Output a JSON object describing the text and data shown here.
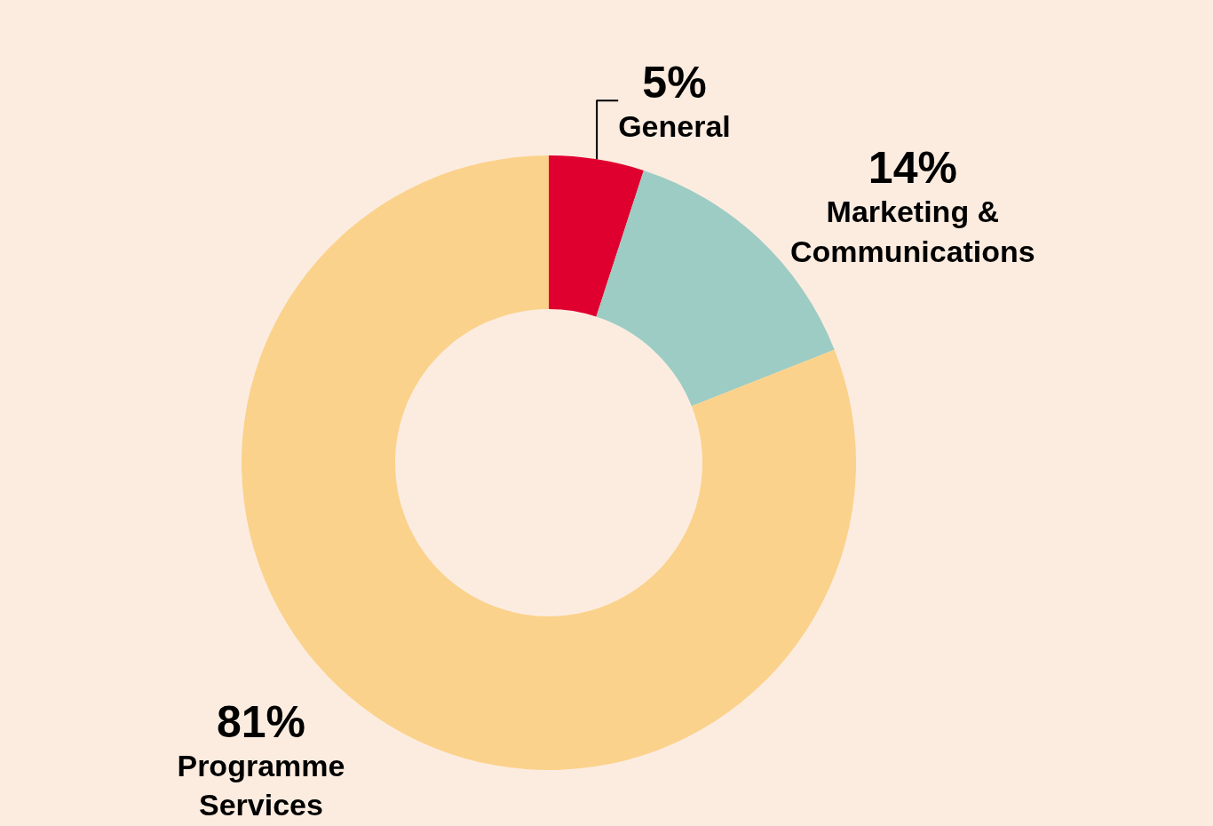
{
  "chart_data": {
    "type": "donut",
    "categories": [
      "General",
      "Marketing & Communications",
      "Programme Services"
    ],
    "values": [
      5,
      14,
      81
    ],
    "value_labels": [
      "5%",
      "14%",
      "81%"
    ],
    "colors": [
      "#e0002f",
      "#9dccc4",
      "#fbd28b"
    ],
    "legend": false
  }
}
